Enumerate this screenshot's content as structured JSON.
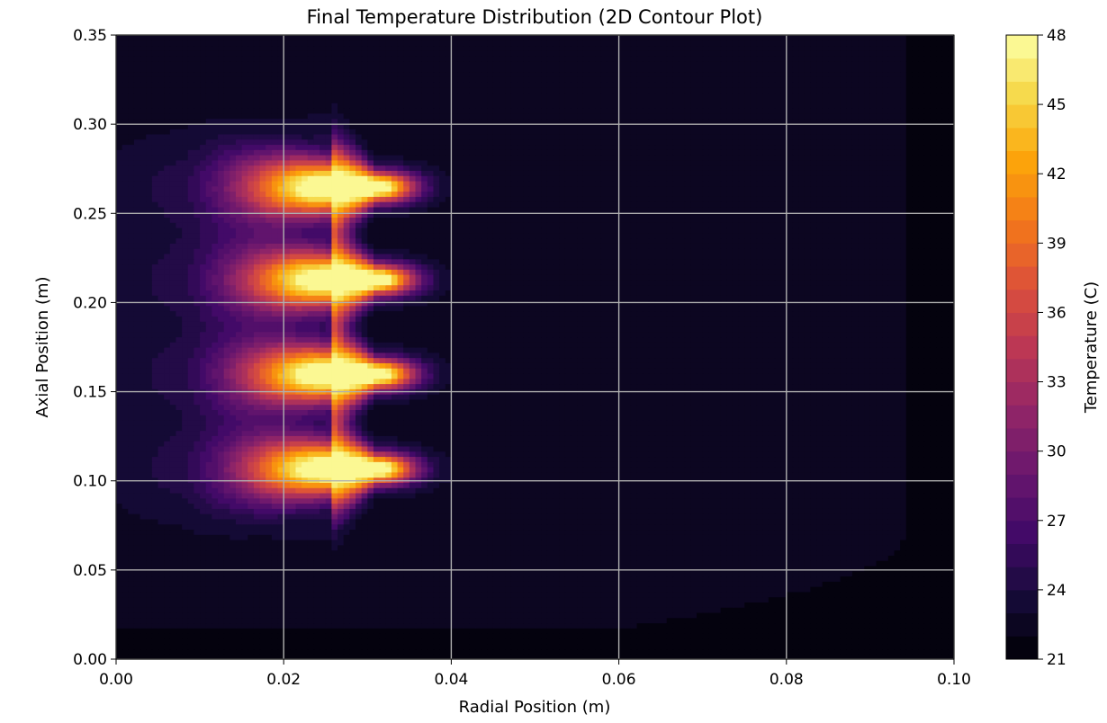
{
  "chart_data": {
    "type": "heatmap",
    "subtype": "filled-contour",
    "title": "Final Temperature Distribution (2D Contour Plot)",
    "xlabel": "Radial Position (m)",
    "ylabel": "Axial Position (m)",
    "xlim": [
      0.0,
      0.1
    ],
    "ylim": [
      0.0,
      0.35
    ],
    "xticks": [
      0.0,
      0.02,
      0.04,
      0.06,
      0.08,
      0.1
    ],
    "xtick_labels": [
      "0.00",
      "0.02",
      "0.04",
      "0.06",
      "0.08",
      "0.10"
    ],
    "yticks": [
      0.0,
      0.05,
      0.1,
      0.15,
      0.2,
      0.25,
      0.3,
      0.35
    ],
    "ytick_labels": [
      "0.00",
      "0.05",
      "0.10",
      "0.15",
      "0.20",
      "0.25",
      "0.30",
      "0.35"
    ],
    "grid": true,
    "colormap": "inferno",
    "colorbar": {
      "label": "Temperature (C)",
      "vmin": 21,
      "vmax": 48,
      "levels": 27,
      "ticks": [
        21,
        24,
        27,
        30,
        33,
        36,
        39,
        42,
        45,
        48
      ],
      "tick_labels": [
        "21",
        "24",
        "27",
        "30",
        "33",
        "36",
        "39",
        "42",
        "45",
        "48"
      ]
    },
    "field": {
      "ambient_temperature": 21,
      "near_ambient_temperature": 22.6,
      "heated_region_r_max": 0.095,
      "hot_spots": [
        {
          "r": 0.026,
          "z": 0.265,
          "peak": 48
        },
        {
          "r": 0.026,
          "z": 0.213,
          "peak": 48
        },
        {
          "r": 0.026,
          "z": 0.16,
          "peak": 48
        },
        {
          "r": 0.026,
          "z": 0.107,
          "peak": 48
        }
      ]
    }
  }
}
